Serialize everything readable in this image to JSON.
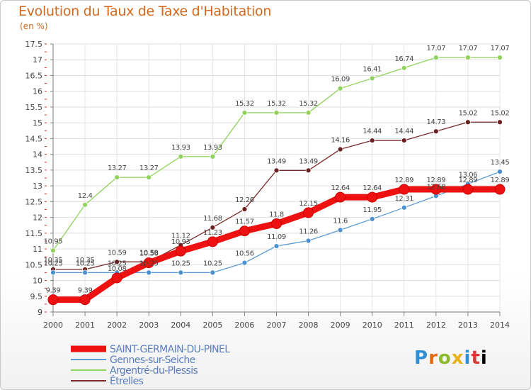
{
  "chart_data": {
    "type": "line",
    "title": "Evolution du Taux de Taxe d'Habitation",
    "unit_label": "(en %)",
    "x": [
      2000,
      2001,
      2002,
      2003,
      2004,
      2005,
      2006,
      2007,
      2008,
      2009,
      2010,
      2011,
      2012,
      2013,
      2014
    ],
    "ylim": [
      9,
      17.5
    ],
    "yticks": [
      "9",
      "9.5",
      "10",
      "10.5",
      "11",
      "11.5",
      "12",
      "12.5",
      "13",
      "13.5",
      "14",
      "14.5",
      "15",
      "15.5",
      "16",
      "16.5",
      "17",
      "17.5"
    ],
    "series": [
      {
        "name": "SAINT-GERMAIN-DU-PINEL",
        "color": "#ee1111",
        "values": [
          9.39,
          9.39,
          10.08,
          10.56,
          10.93,
          11.23,
          11.57,
          11.8,
          12.15,
          12.64,
          12.64,
          12.89,
          12.89,
          12.89,
          12.89
        ],
        "labels": [
          "9.39",
          "9.39",
          "10.08",
          "10.56",
          "10.93",
          "11.23",
          "11.57",
          "11.8",
          "12.15",
          "12.64",
          "12.64",
          "12.89",
          "12.89",
          "12.89",
          "12.89"
        ]
      },
      {
        "name": "Gennes-sur-Seiche",
        "color": "#5b9bd5",
        "values": [
          10.25,
          10.25,
          10.25,
          10.25,
          10.25,
          10.25,
          10.56,
          11.09,
          11.26,
          11.6,
          11.95,
          12.31,
          12.68,
          13.06,
          13.45
        ],
        "labels": [
          "10.25",
          "10.25",
          "10.25",
          "10.25",
          "10.25",
          "10.25",
          "10.56",
          "11.09",
          "11.26",
          "11.6",
          "11.95",
          "12.31",
          "12.68",
          "13.06",
          "13.45"
        ]
      },
      {
        "name": "Argentré-du-Plessis",
        "color": "#8fd35b",
        "values": [
          10.95,
          12.4,
          13.27,
          13.27,
          13.93,
          13.93,
          15.32,
          15.32,
          15.32,
          16.09,
          16.41,
          16.74,
          17.07,
          17.07,
          17.07
        ],
        "labels": [
          "10.95",
          "12.4",
          "13.27",
          "13.27",
          "13.93",
          "13.93",
          "15.32",
          "15.32",
          "15.32",
          "16.09",
          "16.41",
          "16.74",
          "17.07",
          "17.07",
          "17.07"
        ]
      },
      {
        "name": "Étrelles",
        "color": "#7a2a2a",
        "values": [
          10.35,
          10.35,
          10.59,
          10.59,
          11.12,
          11.68,
          12.26,
          13.49,
          13.49,
          14.16,
          14.44,
          14.44,
          14.73,
          15.02,
          15.02
        ],
        "labels": [
          "10.35",
          "10.35",
          "10.59",
          "10.59",
          "11.12",
          "11.68",
          "12.26",
          "13.49",
          "13.49",
          "14.16",
          "14.44",
          "14.44",
          "14.73",
          "15.02",
          "15.02"
        ]
      }
    ],
    "legend_position": "bottom-left"
  },
  "brand": {
    "logo_letters": [
      "P",
      "r",
      "o",
      "x",
      "i",
      "t",
      "i"
    ]
  }
}
